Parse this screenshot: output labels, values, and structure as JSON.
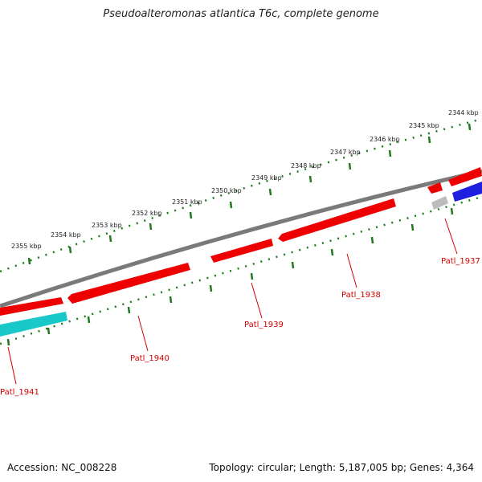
{
  "title": "Pseudoalteromonas atlantica T6c, complete genome",
  "footer": {
    "accession": "Accession: NC_008228",
    "topology": "Topology: circular; Length: 5,187,005 bp; Genes: 4,364"
  },
  "ticks": [
    "2355 kbp",
    "2354 kbp",
    "2353 kbp",
    "2352 kbp",
    "2351 kbp",
    "2350 kbp",
    "2349 kbp",
    "2348 kbp",
    "2347 kbp",
    "2346 kbp",
    "2345 kbp",
    "2344 kbp"
  ],
  "genes": [
    "Patl_1941",
    "Patl_1940",
    "Patl_1939",
    "Patl_1938",
    "Patl_1937"
  ],
  "colors": {
    "forward": "#ee0000",
    "reverse_cds": "#1f1fe0",
    "cyan": "#19c8c8",
    "gray_feature": "#bcbcbc",
    "backbone": "#7a7a7a",
    "tick": "#1f7a1f",
    "label": "#d40000"
  }
}
